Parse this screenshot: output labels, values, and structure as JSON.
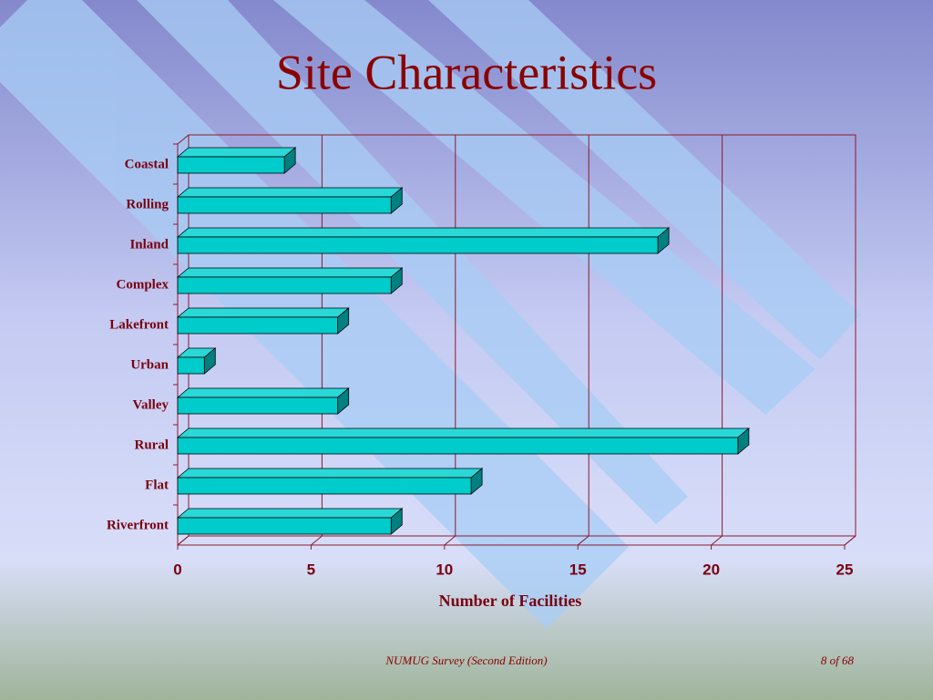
{
  "chart_data": {
    "type": "bar",
    "orientation": "horizontal",
    "title": "Site Characteristics",
    "categories": [
      "Coastal",
      "Rolling",
      "Inland",
      "Complex",
      "Lakefront",
      "Urban",
      "Valley",
      "Rural",
      "Flat",
      "Riverfront"
    ],
    "values": [
      4,
      8,
      18,
      8,
      6,
      1,
      6,
      21,
      11,
      8
    ],
    "color": "#00cccc",
    "xlabel": "Number of Facilities",
    "xlim": [
      0,
      25
    ],
    "xticks": [
      0,
      5,
      10,
      15,
      20,
      25
    ],
    "grid": true
  },
  "footer": {
    "source": "NUMUG Survey (Second Edition)",
    "page": "8 of 68"
  }
}
